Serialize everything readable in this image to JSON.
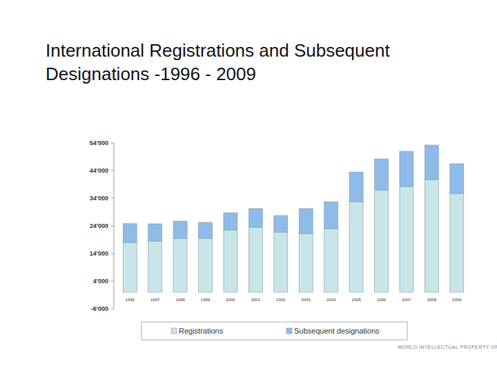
{
  "chart_data": {
    "type": "bar",
    "stacked": true,
    "title": "International Registrations and Subsequent Designations -1996 - 2009",
    "categories": [
      "1996",
      "1997",
      "1998",
      "1999",
      "2000",
      "2001",
      "2002",
      "2003",
      "2004",
      "2005",
      "2006",
      "2007",
      "2008",
      "2009"
    ],
    "series": [
      {
        "name": "Registrations",
        "color": "#c8e5e8",
        "values": [
          18000,
          18500,
          19500,
          19500,
          22500,
          23500,
          21750,
          21250,
          23000,
          32750,
          37000,
          38250,
          40750,
          35750
        ]
      },
      {
        "name": "Subsequent designations",
        "color": "#8fbbe9",
        "values": [
          6800,
          6250,
          6250,
          5750,
          6250,
          6750,
          6000,
          9000,
          9750,
          10750,
          11250,
          12750,
          12500,
          10750
        ]
      }
    ],
    "ylim": [
      -6000,
      54000
    ],
    "yticks": [
      {
        "value": -6000,
        "label": "-6'000"
      },
      {
        "value": 4000,
        "label": "4'000"
      },
      {
        "value": 14000,
        "label": "14'000"
      },
      {
        "value": 24000,
        "label": "24'000"
      },
      {
        "value": 34000,
        "label": "34'000"
      },
      {
        "value": 44000,
        "label": "44'000"
      },
      {
        "value": 54000,
        "label": "54'000"
      }
    ],
    "grid": false,
    "legend": "bottom",
    "annotations": [
      "WORLD INTELLECTUAL PROPERTY ORGANIZATION"
    ]
  }
}
